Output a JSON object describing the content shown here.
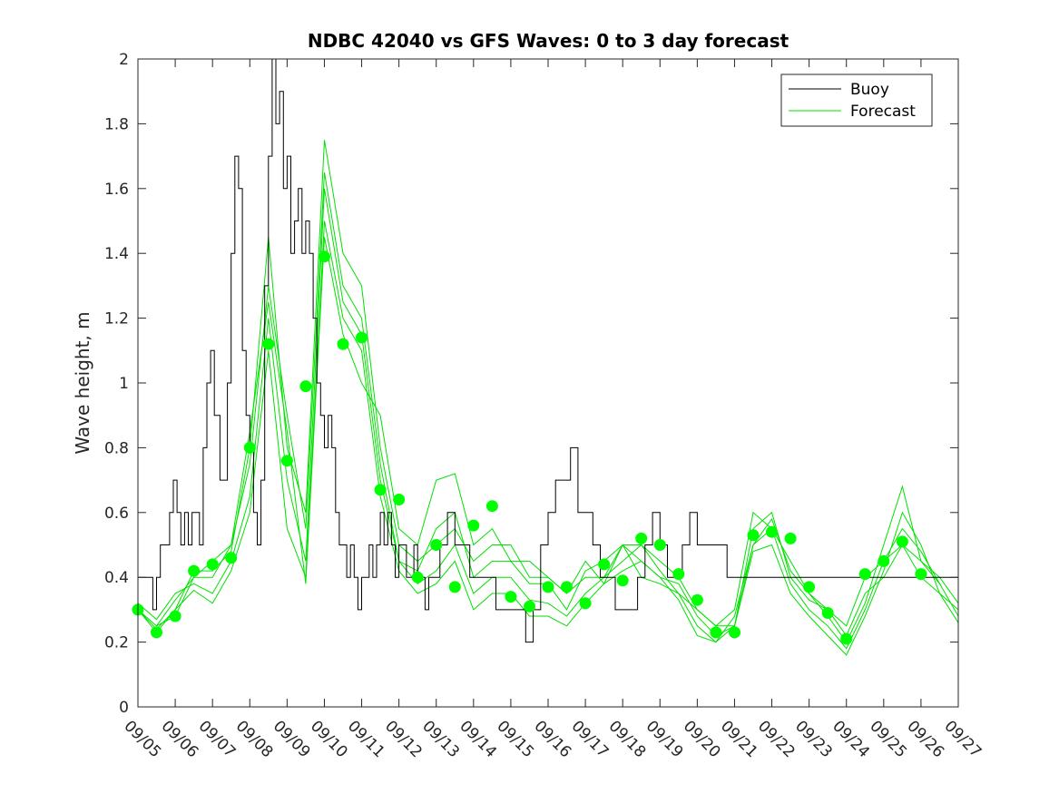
{
  "chart_data": {
    "type": "line",
    "title": "NDBC 42040 vs GFS Waves: 0 to 3 day forecast",
    "xlabel": "",
    "ylabel": "Wave height, m",
    "xlim": [
      0,
      22
    ],
    "ylim": [
      0,
      2
    ],
    "x_tick_labels": [
      "09/05",
      "09/06",
      "09/07",
      "09/08",
      "09/09",
      "09/10",
      "09/11",
      "09/12",
      "09/13",
      "09/14",
      "09/15",
      "09/16",
      "09/17",
      "09/18",
      "09/19",
      "09/20",
      "09/21",
      "09/22",
      "09/23",
      "09/24",
      "09/25",
      "09/26",
      "09/27"
    ],
    "y_ticks": [
      0,
      0.2,
      0.4,
      0.6,
      0.8,
      1,
      1.2,
      1.4,
      1.6,
      1.8,
      2
    ],
    "y_tick_labels": [
      "0",
      "0.2",
      "0.4",
      "0.6",
      "0.8",
      "1",
      "1.2",
      "1.4",
      "1.6",
      "1.8",
      "2"
    ],
    "legend": {
      "position": "top-right",
      "entries": [
        {
          "label": "Buoy",
          "color": "#000000"
        },
        {
          "label": "Forecast",
          "color": "#00e000"
        }
      ]
    },
    "colors": {
      "buoy": "#000000",
      "forecast": "#00e000",
      "analysis_marker": "#00ff00",
      "axes": "#262626"
    },
    "series": [
      {
        "name": "Buoy",
        "x": [
          0,
          0.25,
          0.4,
          0.5,
          0.6,
          0.75,
          0.85,
          0.95,
          1.05,
          1.15,
          1.25,
          1.35,
          1.45,
          1.55,
          1.65,
          1.75,
          1.85,
          1.95,
          2.05,
          2.2,
          2.4,
          2.5,
          2.6,
          2.7,
          2.8,
          2.9,
          3.0,
          3.1,
          3.2,
          3.3,
          3.4,
          3.5,
          3.6,
          3.7,
          3.8,
          3.9,
          4.0,
          4.1,
          4.2,
          4.3,
          4.4,
          4.5,
          4.6,
          4.7,
          4.8,
          4.9,
          5.0,
          5.1,
          5.2,
          5.3,
          5.4,
          5.5,
          5.6,
          5.7,
          5.8,
          5.9,
          6.0,
          6.1,
          6.2,
          6.3,
          6.4,
          6.5,
          6.6,
          6.7,
          6.8,
          6.9,
          7.0,
          7.1,
          7.2,
          7.3,
          7.4,
          7.5,
          7.6,
          7.7,
          7.8,
          7.9,
          8.0,
          8.1,
          8.2,
          8.3,
          8.4,
          8.5,
          8.6,
          8.7,
          8.8,
          8.9,
          9.0,
          9.2,
          9.4,
          9.6,
          9.8,
          10.0,
          10.2,
          10.4,
          10.6,
          10.8,
          11.0,
          11.2,
          11.4,
          11.6,
          11.8,
          12.0,
          12.2,
          12.4,
          12.6,
          12.8,
          13.0,
          13.2,
          13.4,
          13.6,
          13.8,
          14.0,
          14.2,
          14.4,
          14.6,
          14.8,
          15.0,
          15.2,
          15.4,
          15.6,
          15.8,
          16.0,
          16.2,
          16.4,
          16.6,
          16.8,
          17.0,
          17.2,
          17.4,
          17.6,
          17.8,
          18.0,
          18.2,
          18.4,
          18.6,
          18.8,
          19.0,
          19.2,
          19.4,
          19.6,
          19.8,
          20.0,
          20.2,
          20.4,
          20.6,
          20.8,
          21.0,
          21.2,
          21.4,
          21.6,
          21.8,
          22.0
        ],
        "values": [
          0.4,
          0.4,
          0.3,
          0.4,
          0.5,
          0.5,
          0.6,
          0.7,
          0.6,
          0.5,
          0.6,
          0.5,
          0.6,
          0.6,
          0.5,
          0.8,
          1.0,
          1.1,
          0.9,
          0.7,
          1.0,
          1.4,
          1.7,
          1.6,
          1.1,
          0.9,
          0.8,
          0.6,
          0.5,
          0.7,
          1.3,
          1.7,
          2.0,
          1.8,
          1.9,
          1.6,
          1.7,
          1.4,
          1.5,
          1.6,
          1.4,
          1.5,
          1.4,
          1.2,
          1.0,
          0.9,
          0.8,
          0.9,
          0.8,
          0.6,
          0.5,
          0.5,
          0.4,
          0.5,
          0.4,
          0.3,
          0.4,
          0.4,
          0.5,
          0.4,
          0.5,
          0.6,
          0.5,
          0.6,
          0.5,
          0.4,
          0.5,
          0.5,
          0.4,
          0.4,
          0.5,
          0.4,
          0.4,
          0.3,
          0.4,
          0.4,
          0.4,
          0.5,
          0.5,
          0.6,
          0.6,
          0.5,
          0.5,
          0.5,
          0.5,
          0.4,
          0.4,
          0.4,
          0.4,
          0.3,
          0.3,
          0.3,
          0.3,
          0.2,
          0.3,
          0.5,
          0.6,
          0.7,
          0.7,
          0.8,
          0.6,
          0.6,
          0.5,
          0.4,
          0.4,
          0.3,
          0.3,
          0.3,
          0.4,
          0.5,
          0.6,
          0.5,
          0.4,
          0.4,
          0.5,
          0.6,
          0.5,
          0.5,
          0.5,
          0.5,
          0.4,
          0.4,
          0.4,
          0.4,
          0.4,
          0.4,
          0.4,
          0.4,
          0.4,
          0.4,
          0.4,
          0.4,
          0.4,
          0.4,
          0.4,
          0.4,
          0.4,
          0.4,
          0.4,
          0.4,
          0.4,
          0.4,
          0.4,
          0.4,
          0.4,
          0.4,
          0.4,
          0.4,
          0.4,
          0.4,
          0.4,
          0.4
        ]
      },
      {
        "name": "Forecast 1",
        "x": [
          0,
          0.5,
          1,
          1.5,
          2,
          2.5,
          3,
          3.5,
          4,
          4.5,
          5,
          5.5,
          6,
          6.5,
          7,
          7.5,
          8,
          8.5,
          9,
          9.5,
          10,
          10.5,
          11,
          11.5,
          12,
          12.5,
          13,
          13.5,
          14,
          14.5,
          15,
          15.5,
          16,
          16.5,
          17,
          17.5,
          18,
          18.5,
          19,
          19.5,
          20,
          20.5,
          21,
          21.5,
          22
        ],
        "values": [
          0.3,
          0.23,
          0.3,
          0.42,
          0.42,
          0.48,
          0.8,
          1.45,
          0.8,
          0.6,
          1.75,
          1.4,
          1.3,
          0.8,
          0.5,
          0.45,
          0.5,
          0.55,
          0.45,
          0.5,
          0.5,
          0.4,
          0.4,
          0.35,
          0.4,
          0.4,
          0.5,
          0.5,
          0.45,
          0.4,
          0.3,
          0.25,
          0.3,
          0.6,
          0.55,
          0.45,
          0.35,
          0.3,
          0.25,
          0.4,
          0.45,
          0.5,
          0.4,
          0.35,
          0.3
        ]
      },
      {
        "name": "Forecast 2",
        "x": [
          0,
          0.5,
          1,
          1.5,
          2,
          2.5,
          3,
          3.5,
          4,
          4.5,
          5,
          5.5,
          6,
          6.5,
          7,
          7.5,
          8,
          8.5,
          9,
          9.5,
          10,
          10.5,
          11,
          11.5,
          12,
          12.5,
          13,
          13.5,
          14,
          14.5,
          15,
          15.5,
          16,
          16.5,
          17,
          17.5,
          18,
          18.5,
          19,
          19.5,
          20,
          20.5,
          21,
          21.5,
          22
        ],
        "values": [
          0.3,
          0.25,
          0.33,
          0.4,
          0.45,
          0.5,
          0.75,
          1.3,
          0.9,
          0.55,
          1.65,
          1.3,
          1.2,
          0.75,
          0.45,
          0.42,
          0.55,
          0.6,
          0.4,
          0.45,
          0.45,
          0.38,
          0.38,
          0.3,
          0.42,
          0.45,
          0.5,
          0.45,
          0.4,
          0.38,
          0.28,
          0.22,
          0.25,
          0.55,
          0.6,
          0.4,
          0.33,
          0.3,
          0.22,
          0.35,
          0.4,
          0.5,
          0.45,
          0.4,
          0.32
        ]
      },
      {
        "name": "Forecast 3",
        "x": [
          0,
          0.5,
          1,
          1.5,
          2,
          2.5,
          3,
          3.5,
          4,
          4.5,
          5,
          5.5,
          6,
          6.5,
          7,
          7.5,
          8,
          8.5,
          9,
          9.5,
          10,
          10.5,
          11,
          11.5,
          12,
          12.5,
          13,
          13.5,
          14,
          14.5,
          15,
          15.5,
          16,
          16.5,
          17,
          17.5,
          18,
          18.5,
          19,
          19.5,
          20,
          20.5,
          21,
          21.5,
          22
        ],
        "values": [
          0.32,
          0.27,
          0.35,
          0.38,
          0.35,
          0.45,
          0.65,
          1.2,
          0.7,
          0.45,
          1.6,
          1.25,
          1.15,
          0.7,
          0.45,
          0.38,
          0.42,
          0.5,
          0.35,
          0.4,
          0.4,
          0.33,
          0.32,
          0.28,
          0.35,
          0.4,
          0.45,
          0.5,
          0.42,
          0.35,
          0.25,
          0.2,
          0.28,
          0.5,
          0.55,
          0.38,
          0.3,
          0.25,
          0.18,
          0.3,
          0.45,
          0.55,
          0.48,
          0.38,
          0.28
        ]
      },
      {
        "name": "Forecast 4",
        "x": [
          0,
          0.5,
          1,
          1.5,
          2,
          2.5,
          3,
          3.5,
          4,
          4.5,
          5,
          5.5,
          6,
          6.5,
          7,
          7.5,
          8,
          8.5,
          9,
          9.5,
          10,
          10.5,
          11,
          11.5,
          12,
          12.5,
          13,
          13.5,
          14,
          14.5,
          15,
          15.5,
          16,
          16.5,
          17,
          17.5,
          18,
          18.5,
          19,
          19.5,
          20,
          20.5,
          21,
          21.5,
          22
        ],
        "values": [
          0.3,
          0.24,
          0.3,
          0.36,
          0.32,
          0.42,
          0.6,
          1.1,
          0.55,
          0.4,
          1.5,
          1.2,
          1.1,
          0.65,
          0.42,
          0.35,
          0.38,
          0.45,
          0.3,
          0.35,
          0.35,
          0.28,
          0.28,
          0.25,
          0.32,
          0.38,
          0.42,
          0.45,
          0.4,
          0.33,
          0.22,
          0.2,
          0.25,
          0.48,
          0.5,
          0.35,
          0.28,
          0.22,
          0.16,
          0.28,
          0.42,
          0.6,
          0.5,
          0.35,
          0.26
        ]
      },
      {
        "name": "Forecast 5",
        "x": [
          0.5,
          1,
          1.5,
          2,
          2.5,
          3,
          3.5,
          4,
          4.5,
          5,
          5.5,
          6,
          6.5,
          7,
          7.5,
          8,
          8.5,
          9,
          9.5,
          10,
          10.5,
          11,
          11.5,
          12,
          12.5,
          13,
          13.5,
          14,
          14.5,
          15,
          15.5,
          16,
          16.5,
          17,
          17.5,
          18,
          18.5,
          19,
          19.5,
          20,
          20.5,
          21,
          21.5
        ],
        "values": [
          0.25,
          0.28,
          0.4,
          0.4,
          0.5,
          0.85,
          1.25,
          0.85,
          0.38,
          1.45,
          1.15,
          1.0,
          0.9,
          0.55,
          0.5,
          0.7,
          0.72,
          0.5,
          0.55,
          0.45,
          0.45,
          0.4,
          0.35,
          0.45,
          0.38,
          0.5,
          0.4,
          0.38,
          0.35,
          0.3,
          0.25,
          0.25,
          0.5,
          0.58,
          0.42,
          0.35,
          0.28,
          0.2,
          0.32,
          0.5,
          0.68,
          0.45,
          0.38
        ]
      }
    ],
    "analysis_markers": {
      "name": "Forecast (analysis)",
      "x": [
        0,
        0.5,
        1,
        1.5,
        2,
        2.5,
        3,
        3.5,
        4,
        4.5,
        5,
        5.5,
        6,
        6.5,
        7,
        7.5,
        8,
        8.5,
        9,
        9.5,
        10,
        10.5,
        11,
        11.5,
        12,
        12.5,
        13,
        13.5,
        14,
        14.5,
        15,
        15.5,
        16,
        16.5,
        17,
        17.5,
        18,
        18.5,
        19,
        19.5,
        20,
        20.5,
        21
      ],
      "values": [
        0.3,
        0.23,
        0.28,
        0.42,
        0.44,
        0.46,
        0.8,
        1.12,
        0.76,
        0.99,
        1.39,
        1.12,
        1.14,
        0.67,
        0.64,
        0.4,
        0.5,
        0.37,
        0.56,
        0.62,
        0.34,
        0.31,
        0.37,
        0.37,
        0.32,
        0.44,
        0.39,
        0.52,
        0.5,
        0.41,
        0.33,
        0.23,
        0.23,
        0.53,
        0.54,
        0.52,
        0.37,
        0.29,
        0.21,
        0.41,
        0.45,
        0.51,
        0.41
      ]
    }
  }
}
